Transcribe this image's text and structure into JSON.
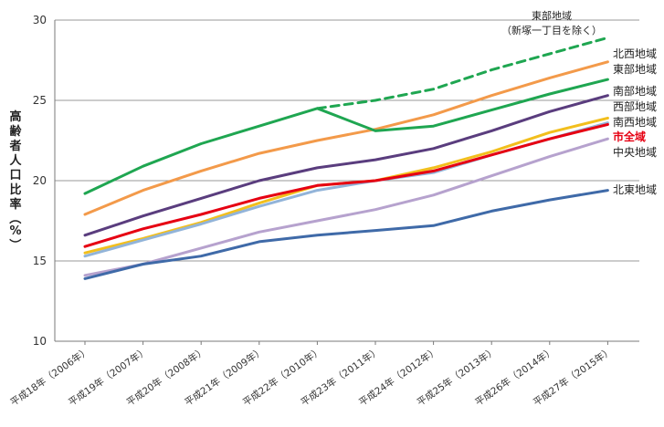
{
  "chart_data": {
    "type": "line",
    "title": "",
    "xlabel": "",
    "ylabel": "高齢者人口比率（%）",
    "ylim": [
      10,
      30
    ],
    "yticks": [
      10,
      15,
      20,
      25,
      30
    ],
    "grid": true,
    "legend": "labels-at-line-ends",
    "categories": [
      "平成18年（2006年）",
      "平成19年（2007年）",
      "平成20年（2008年）",
      "平成21年（2009年）",
      "平成22年（2010年）",
      "平成23年（2011年）",
      "平成24年（2012年）",
      "平成25年（2013年）",
      "平成26年（2014年）",
      "平成27年（2015年）"
    ],
    "series": [
      {
        "name": "北西地域",
        "color": "#f39a4a",
        "values": [
          17.9,
          19.4,
          20.6,
          21.7,
          22.5,
          23.2,
          24.1,
          25.3,
          26.4,
          27.4
        ]
      },
      {
        "name": "東部地域",
        "color": "#1fa651",
        "values": [
          19.2,
          20.9,
          22.3,
          23.4,
          24.5,
          23.1,
          23.4,
          24.4,
          25.4,
          26.3
        ]
      },
      {
        "name": "南部地域",
        "color": "#5a3d7e",
        "values": [
          16.6,
          17.8,
          18.9,
          20.0,
          20.8,
          21.3,
          22.0,
          23.1,
          24.3,
          25.3
        ]
      },
      {
        "name": "西部地域",
        "color": "#f2bf1d",
        "values": [
          15.5,
          16.4,
          17.4,
          18.6,
          19.7,
          20.0,
          20.8,
          21.8,
          23.0,
          23.9
        ]
      },
      {
        "name": "南西地域",
        "color": "#92b4d9",
        "values": [
          15.3,
          16.3,
          17.3,
          18.4,
          19.4,
          20.0,
          20.5,
          21.6,
          22.6,
          23.6
        ]
      },
      {
        "name": "市全域",
        "color": "#e60012",
        "values": [
          15.9,
          17.0,
          17.9,
          18.9,
          19.7,
          20.0,
          20.6,
          21.6,
          22.6,
          23.5
        ]
      },
      {
        "name": "中央地域",
        "color": "#b6a2ce",
        "values": [
          14.1,
          14.8,
          15.8,
          16.8,
          17.5,
          18.2,
          19.1,
          20.3,
          21.5,
          22.6
        ]
      },
      {
        "name": "北東地域",
        "color": "#3f6aa8",
        "values": [
          13.9,
          14.8,
          15.3,
          16.2,
          16.6,
          16.9,
          17.2,
          18.1,
          18.8,
          19.4
        ]
      },
      {
        "name": "東部地域（新塚一丁目を除く）",
        "color": "#1fa651",
        "dashed": true,
        "values": [
          null,
          null,
          null,
          null,
          24.5,
          25.0,
          25.7,
          26.9,
          27.9,
          28.9
        ]
      }
    ],
    "annotation": {
      "line1": "東部地域",
      "line2": "（新塚一丁目を除く）"
    }
  }
}
